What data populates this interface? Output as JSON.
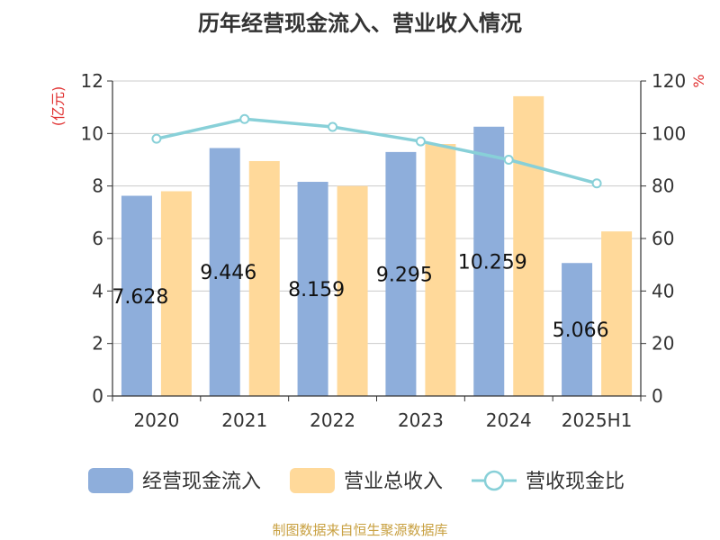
{
  "chart_data": {
    "type": "bar",
    "title": "历年经营现金流入、营业收入情况",
    "categories": [
      "2020",
      "2021",
      "2022",
      "2023",
      "2024",
      "2025H1"
    ],
    "y_left": {
      "unit_label": "(亿元)",
      "ticks": [
        0,
        2,
        4,
        6,
        8,
        10,
        12
      ],
      "ylim": [
        0,
        12
      ]
    },
    "y_right": {
      "unit_label": "%",
      "ticks": [
        0,
        20,
        40,
        60,
        80,
        100,
        120
      ],
      "ylim": [
        0,
        120
      ]
    },
    "series": [
      {
        "name": "经营现金流入",
        "type": "bar",
        "axis": "left",
        "color": "#8eaedb",
        "values": [
          7.628,
          9.446,
          8.159,
          9.295,
          10.259,
          5.066
        ],
        "labels": [
          "7.628",
          "9.446",
          "8.159",
          "9.295",
          "10.259",
          "5.066"
        ]
      },
      {
        "name": "营业总收入",
        "type": "bar",
        "axis": "left",
        "color": "#ffd99a",
        "values": [
          7.8,
          8.95,
          8.0,
          9.6,
          11.42,
          6.27
        ]
      },
      {
        "name": "营收现金比",
        "type": "line",
        "axis": "right",
        "color": "#88d0d8",
        "values": [
          98,
          105.5,
          102.5,
          97,
          90,
          81
        ]
      }
    ],
    "grid": true,
    "legend_position": "bottom"
  },
  "source": "制图数据来自恒生聚源数据库"
}
